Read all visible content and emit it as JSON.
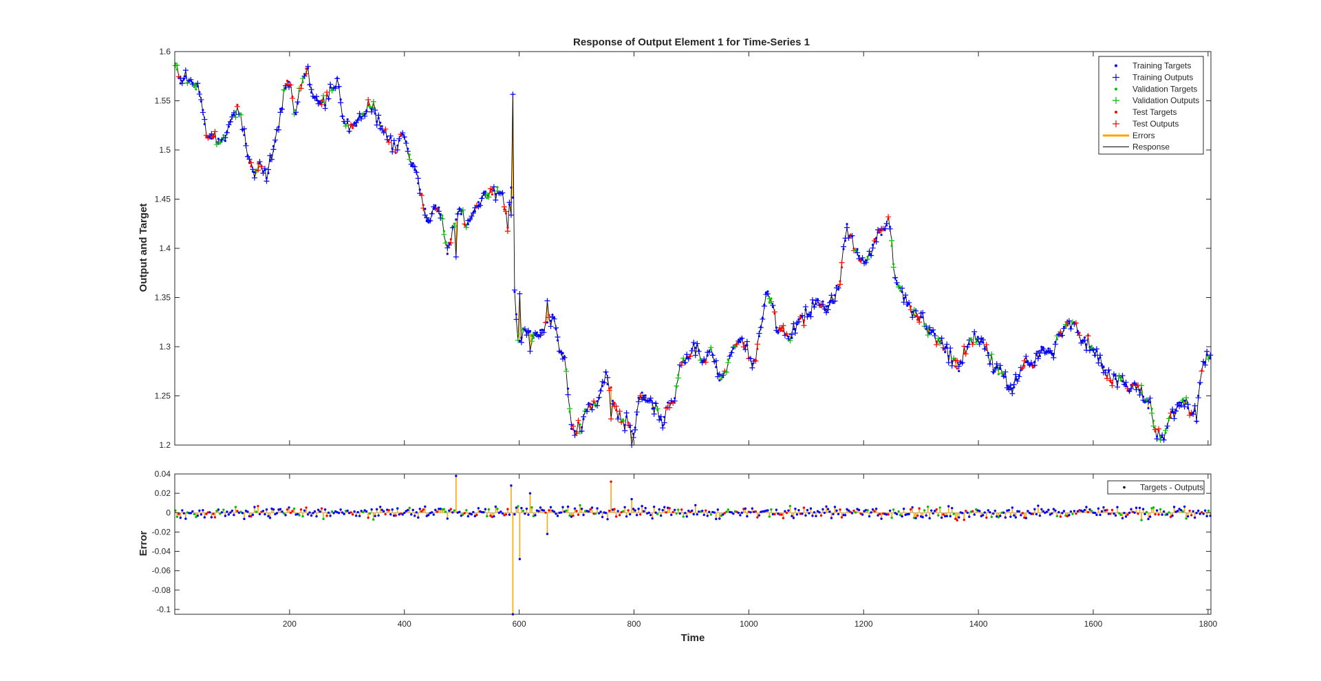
{
  "chart_data": [
    {
      "type": "line",
      "title": "Response of Output Element 1 for Time-Series 1",
      "xlabel": "",
      "ylabel": "Output and Target",
      "xlim": [
        0,
        1805
      ],
      "ylim": [
        1.2,
        1.6
      ],
      "x_ticks": [
        "200",
        "400",
        "600",
        "800",
        "1000",
        "1200",
        "1400",
        "1600",
        "1800"
      ],
      "y_ticks": [
        "1.2",
        "1.25",
        "1.3",
        "1.35",
        "1.4",
        "1.45",
        "1.5",
        "1.55",
        "1.6"
      ],
      "legend_position": "top-right",
      "legend": [
        "Training Targets",
        "Training Outputs",
        "Validation Targets",
        "Validation Outputs",
        "Test Targets",
        "Test Outputs",
        "Errors",
        "Response"
      ],
      "colors": {
        "training": "#0000ff",
        "validation": "#00c000",
        "test": "#ff0000",
        "errors": "#ffa500",
        "response": "#000000"
      },
      "grid": false,
      "series": [
        {
          "name": "Response",
          "x": [
            1,
            10,
            20,
            35,
            45,
            55,
            65,
            80,
            95,
            110,
            125,
            135,
            150,
            160,
            170,
            180,
            190,
            200,
            210,
            220,
            230,
            240,
            255,
            270,
            285,
            295,
            305,
            320,
            340,
            355,
            370,
            385,
            395,
            410,
            420,
            430,
            440,
            455,
            465,
            475,
            485,
            495,
            510,
            525,
            540,
            555,
            570,
            580,
            588,
            592,
            596,
            600,
            608,
            620,
            635,
            650,
            660,
            670,
            680,
            690,
            700,
            710,
            720,
            735,
            750,
            760,
            770,
            785,
            800,
            810,
            825,
            840,
            850,
            860,
            870,
            880,
            895,
            910,
            920,
            935,
            950,
            965,
            980,
            995,
            1010,
            1020,
            1030,
            1040,
            1050,
            1060,
            1075,
            1090,
            1105,
            1120,
            1135,
            1150,
            1160,
            1170,
            1180,
            1190,
            1200,
            1210,
            1220,
            1235,
            1245,
            1255,
            1265,
            1280,
            1295,
            1310,
            1325,
            1340,
            1355,
            1365,
            1380,
            1395,
            1410,
            1425,
            1440,
            1455,
            1470,
            1485,
            1495,
            1510,
            1525,
            1540,
            1555,
            1565,
            1580,
            1595,
            1610,
            1620,
            1630,
            1645,
            1660,
            1675,
            1690,
            1700,
            1710,
            1720,
            1730,
            1745,
            1760,
            1770,
            1780,
            1790,
            1800,
            1805
          ],
          "y": [
            1.585,
            1.565,
            1.575,
            1.562,
            1.555,
            1.515,
            1.512,
            1.505,
            1.525,
            1.545,
            1.505,
            1.475,
            1.49,
            1.47,
            1.5,
            1.52,
            1.56,
            1.57,
            1.535,
            1.565,
            1.585,
            1.555,
            1.55,
            1.56,
            1.568,
            1.53,
            1.52,
            1.53,
            1.545,
            1.53,
            1.515,
            1.5,
            1.52,
            1.495,
            1.48,
            1.455,
            1.425,
            1.445,
            1.435,
            1.395,
            1.42,
            1.44,
            1.425,
            1.44,
            1.455,
            1.46,
            1.455,
            1.425,
            1.48,
            1.36,
            1.33,
            1.3,
            1.32,
            1.31,
            1.315,
            1.33,
            1.33,
            1.3,
            1.29,
            1.22,
            1.215,
            1.225,
            1.245,
            1.24,
            1.27,
            1.255,
            1.23,
            1.225,
            1.21,
            1.25,
            1.245,
            1.235,
            1.22,
            1.245,
            1.245,
            1.28,
            1.29,
            1.3,
            1.28,
            1.295,
            1.265,
            1.285,
            1.31,
            1.3,
            1.28,
            1.32,
            1.355,
            1.345,
            1.315,
            1.32,
            1.31,
            1.33,
            1.335,
            1.345,
            1.34,
            1.35,
            1.37,
            1.42,
            1.41,
            1.395,
            1.385,
            1.39,
            1.41,
            1.42,
            1.428,
            1.37,
            1.355,
            1.345,
            1.33,
            1.32,
            1.31,
            1.3,
            1.285,
            1.275,
            1.3,
            1.31,
            1.3,
            1.28,
            1.275,
            1.255,
            1.27,
            1.285,
            1.28,
            1.3,
            1.29,
            1.31,
            1.32,
            1.325,
            1.31,
            1.305,
            1.29,
            1.275,
            1.265,
            1.27,
            1.255,
            1.265,
            1.245,
            1.24,
            1.215,
            1.205,
            1.22,
            1.24,
            1.245,
            1.235,
            1.23,
            1.28,
            1.29,
            1.29
          ]
        }
      ]
    },
    {
      "type": "line",
      "title": "",
      "xlabel": "Time",
      "ylabel": "Error",
      "xlim": [
        0,
        1805
      ],
      "ylim": [
        -0.105,
        0.04
      ],
      "x_ticks": [
        "200",
        "400",
        "600",
        "800",
        "1000",
        "1200",
        "1400",
        "1600",
        "1800"
      ],
      "y_ticks": [
        "-0.1",
        "-0.08",
        "-0.06",
        "-0.04",
        "-0.02",
        "0",
        "0.02",
        "0.04"
      ],
      "legend_position": "top-right",
      "legend": [
        "Targets - Outputs"
      ],
      "grid": false,
      "series": [
        {
          "name": "Targets - Outputs",
          "x": [
            490,
            585,
            590,
            600,
            620,
            650,
            760,
            795
          ],
          "y": [
            0.038,
            0.028,
            -0.105,
            -0.048,
            0.02,
            -0.022,
            0.032,
            0.014
          ]
        }
      ]
    }
  ]
}
